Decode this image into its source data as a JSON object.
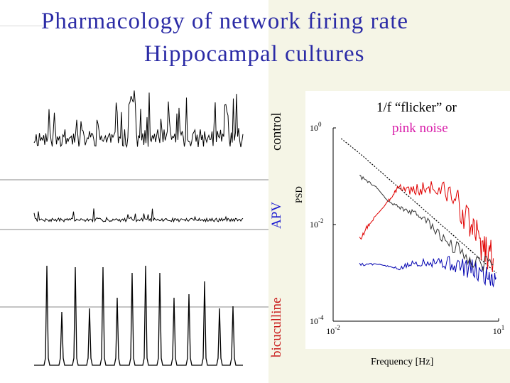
{
  "title": "Pharmacology of network firing rate",
  "subtitle": "Hippocampal cultures",
  "conditions": [
    {
      "label": "control",
      "color": "#000000"
    },
    {
      "label": "APV",
      "color": "#1a1ad0"
    },
    {
      "label": "bicuculline",
      "color": "#c81818"
    }
  ],
  "legend": {
    "line1": "1/f  “flicker” or",
    "line2": "pink noise",
    "line2_color": "#d81aa8"
  },
  "colors": {
    "title": "#2b2ba6",
    "red_trace": "#e00000",
    "blue_trace": "#0000b0",
    "black_trace": "#000000"
  },
  "chart_data": [
    {
      "type": "line",
      "description_of_panel": "firing-rate time traces",
      "series": [
        {
          "name": "control"
        },
        {
          "name": "APV"
        },
        {
          "name": "bicuculline"
        }
      ]
    },
    {
      "type": "line",
      "xlabel": "Frequency [Hz]",
      "ylabel": "PSD",
      "xscale": "log",
      "yscale": "log",
      "xlim": [
        0.01,
        10
      ],
      "ylim": [
        0.0001,
        1
      ],
      "x_ticks": [
        {
          "base": "10",
          "exp": "-2"
        },
        {
          "base": "10",
          "exp": "1"
        }
      ],
      "y_ticks": [
        {
          "base": "10",
          "exp": "0"
        },
        {
          "base": "10",
          "exp": "-2"
        },
        {
          "base": "10",
          "exp": "-4"
        }
      ],
      "series": [
        {
          "x": [
            0.014,
            0.03,
            0.1,
            0.3,
            1,
            3,
            9
          ],
          "y": [
            0.6,
            0.3,
            0.09,
            0.03,
            0.009,
            0.003,
            0.001
          ]
        },
        {
          "x": [
            0.03,
            0.06,
            0.1,
            0.2,
            0.4,
            1,
            3,
            8
          ],
          "y": [
            0.1,
            0.06,
            0.03,
            0.02,
            0.015,
            0.005,
            0.002,
            0.0015
          ]
        },
        {
          "x": [
            0.03,
            0.05,
            0.1,
            0.15,
            0.3,
            0.6,
            1.5,
            3,
            5,
            8
          ],
          "y": [
            0.005,
            0.012,
            0.03,
            0.06,
            0.05,
            0.06,
            0.04,
            0.01,
            0.004,
            0.002
          ]
        },
        {
          "x": [
            0.03,
            0.07,
            0.15,
            0.3,
            0.7,
            1.5,
            3,
            6,
            9
          ],
          "y": [
            0.0015,
            0.0015,
            0.0012,
            0.0016,
            0.0018,
            0.0015,
            0.0012,
            0.0009,
            0.0008
          ]
        }
      ]
    }
  ]
}
